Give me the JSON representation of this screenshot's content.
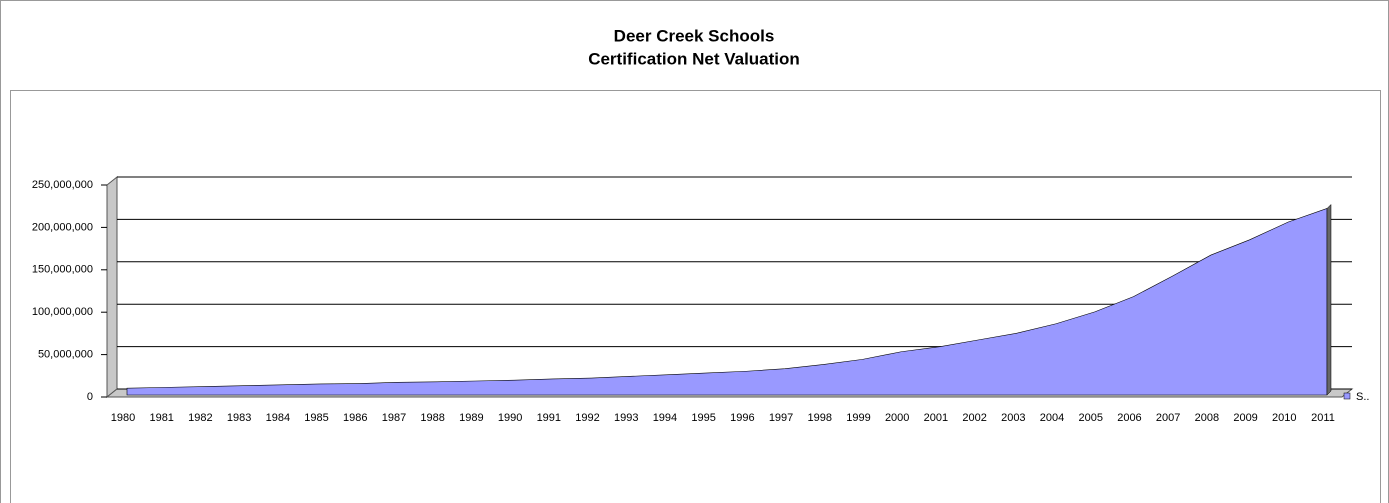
{
  "chart_data": {
    "type": "area",
    "title": "Deer Creek Schools",
    "subtitle": "Certification Net Valuation",
    "categories": [
      "1980",
      "1981",
      "1982",
      "1983",
      "1984",
      "1985",
      "1986",
      "1987",
      "1988",
      "1989",
      "1990",
      "1991",
      "1992",
      "1993",
      "1994",
      "1995",
      "1996",
      "1997",
      "1998",
      "1999",
      "2000",
      "2001",
      "2002",
      "2003",
      "2004",
      "2005",
      "2006",
      "2007",
      "2008",
      "2009",
      "2010",
      "2011"
    ],
    "series": [
      {
        "name": "S..",
        "color": "#9999ff",
        "values": [
          8000000,
          9000000,
          10000000,
          11000000,
          12000000,
          13000000,
          13500000,
          15000000,
          15500000,
          16500000,
          17500000,
          19000000,
          20000000,
          22000000,
          24000000,
          26000000,
          28000000,
          31000000,
          36000000,
          42000000,
          51000000,
          57000000,
          65000000,
          73000000,
          84000000,
          98000000,
          116000000,
          140000000,
          165000000,
          183000000,
          204000000,
          220000000
        ]
      }
    ],
    "ylim": [
      0,
      250000000
    ],
    "yticks": [
      0,
      {
        "value": 50000000,
        "label": "50,000,000"
      },
      {
        "value": 100000000,
        "label": "100,000,000"
      },
      {
        "value": 150000000,
        "label": "150,000,000"
      },
      {
        "value": 200000000,
        "label": "200,000,000"
      },
      {
        "value": 250000000,
        "label": "250,000,000"
      }
    ],
    "grid": true,
    "legend": "right"
  }
}
